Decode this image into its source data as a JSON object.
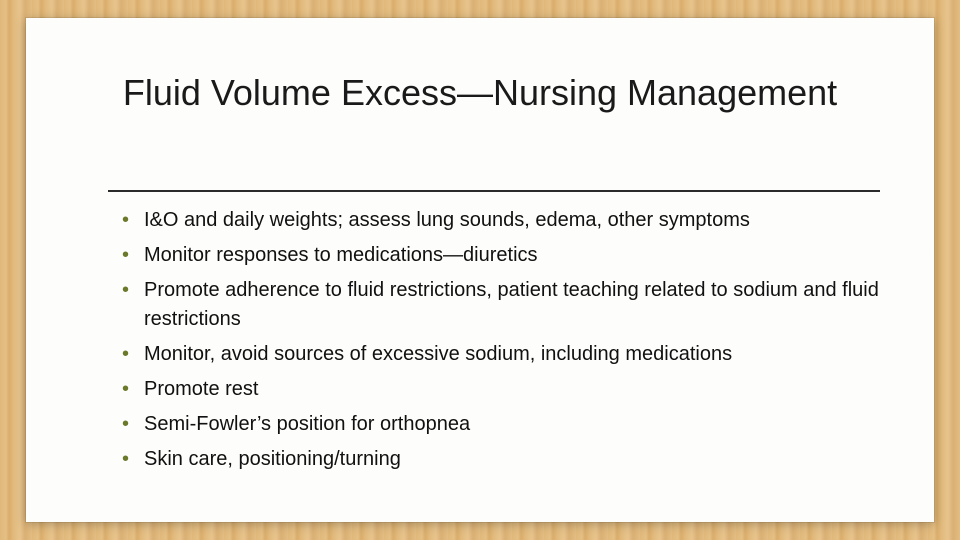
{
  "slide": {
    "title": "Fluid Volume Excess—Nursing Management",
    "title_fontsize": 36,
    "title_color": "#1a1a1a",
    "hr_color": "#2b2b2b",
    "bullet_color": "#6a7a2a",
    "bullet_glyph": "•",
    "body_fontsize": 20,
    "body_color": "#111111",
    "panel_bg": "#fdfdfb",
    "frame_colors": [
      "#e0b87a",
      "#e4bf85",
      "#d9ad6b",
      "#e2bb7e",
      "#e7c48d",
      "#dab074",
      "#e3bd82"
    ],
    "bullets": [
      "I&O and daily weights; assess  lung sounds, edema, other symptoms",
      "Monitor responses to medications—diuretics",
      "Promote adherence to fluid restrictions, patient teaching related to sodium and fluid restrictions",
      "Monitor, avoid sources of excessive sodium, including medications",
      "Promote rest",
      "Semi-Fowler’s position for orthopnea",
      "Skin care, positioning/turning"
    ]
  }
}
